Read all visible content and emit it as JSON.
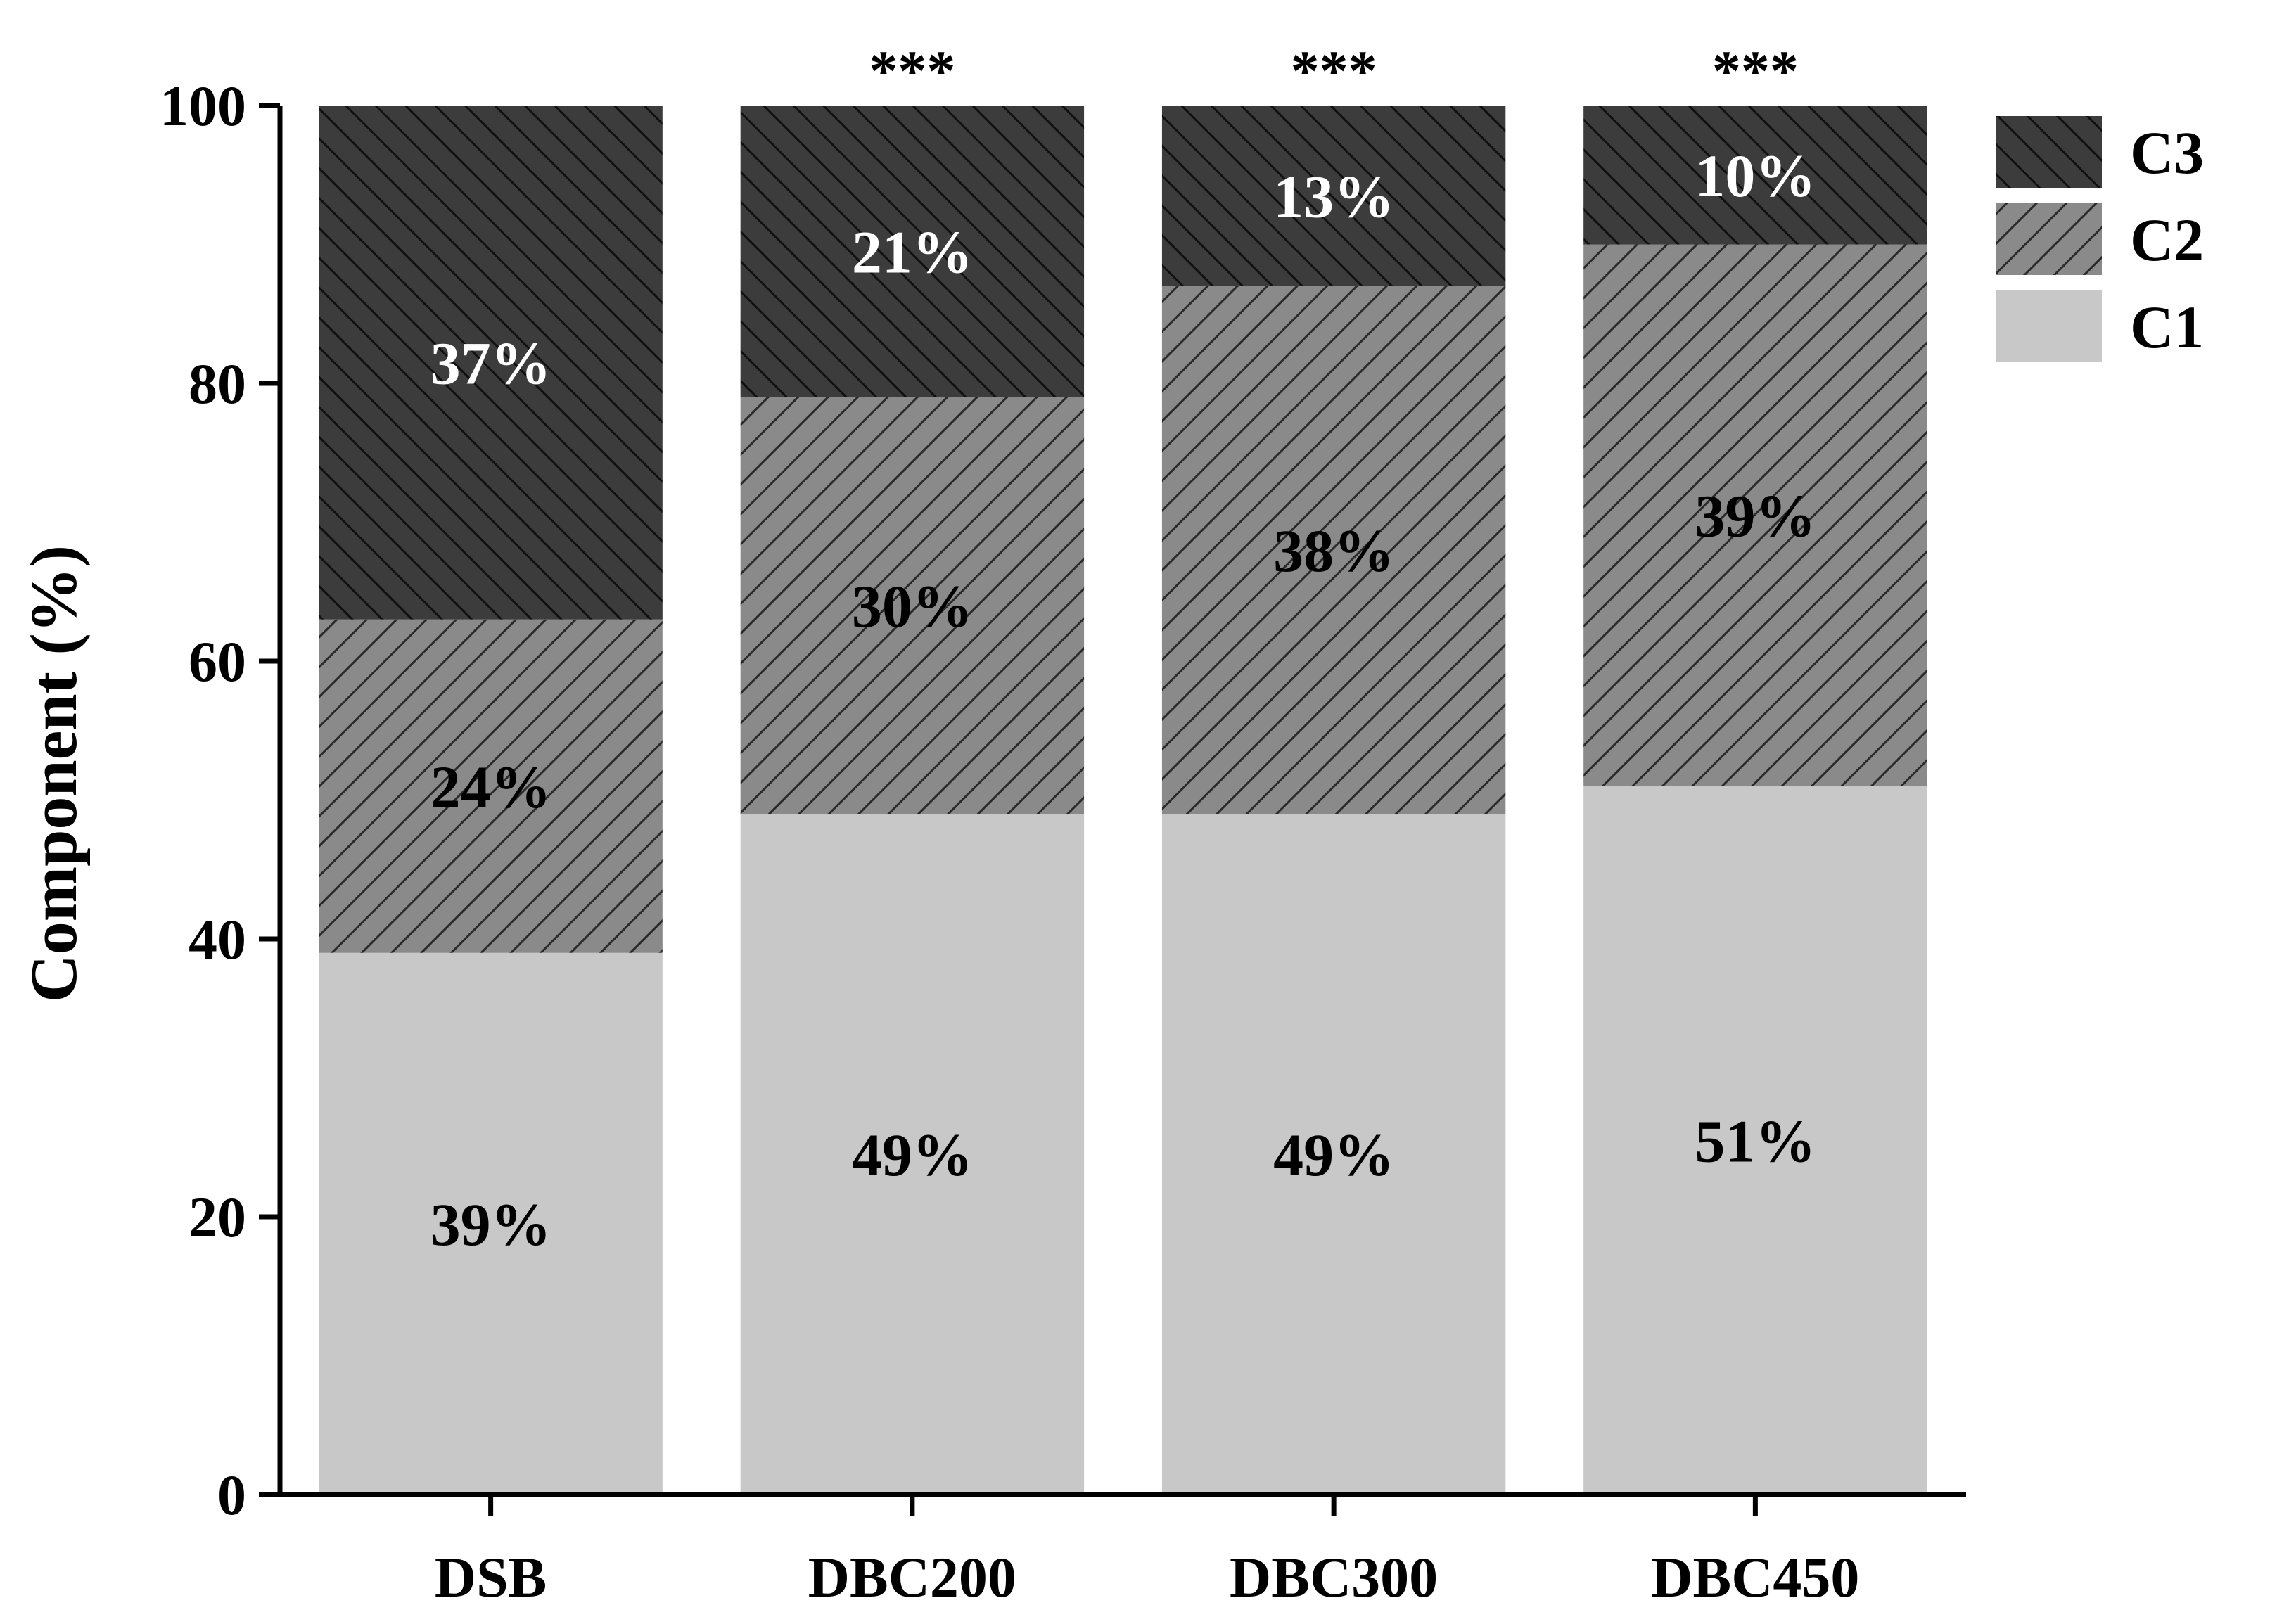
{
  "chart_data": {
    "type": "bar",
    "stacked": true,
    "categories": [
      "DSB",
      "DBC200",
      "DBC300",
      "DBC450"
    ],
    "series": [
      {
        "name": "C1",
        "values": [
          39,
          49,
          49,
          51
        ],
        "labels": [
          "39%",
          "49%",
          "49%",
          "51%"
        ],
        "color": "#c8c8c8",
        "pattern": "none"
      },
      {
        "name": "C2",
        "values": [
          24,
          30,
          38,
          39
        ],
        "labels": [
          "24%",
          "30%",
          "38%",
          "39%"
        ],
        "color": "#8a8a8a",
        "pattern": "forward-hatch"
      },
      {
        "name": "C3",
        "values": [
          37,
          21,
          13,
          10
        ],
        "labels": [
          "37%",
          "21%",
          "13%",
          "10%"
        ],
        "color": "#3c3c3c",
        "pattern": "back-hatch"
      }
    ],
    "significance": [
      "",
      "***",
      "***",
      "***"
    ],
    "ylabel": "Component (%)",
    "xlabel": "",
    "ylim": [
      0,
      100
    ],
    "yticks": [
      0,
      20,
      40,
      60,
      80,
      100
    ],
    "grid": false,
    "legend_position": "top-right"
  }
}
